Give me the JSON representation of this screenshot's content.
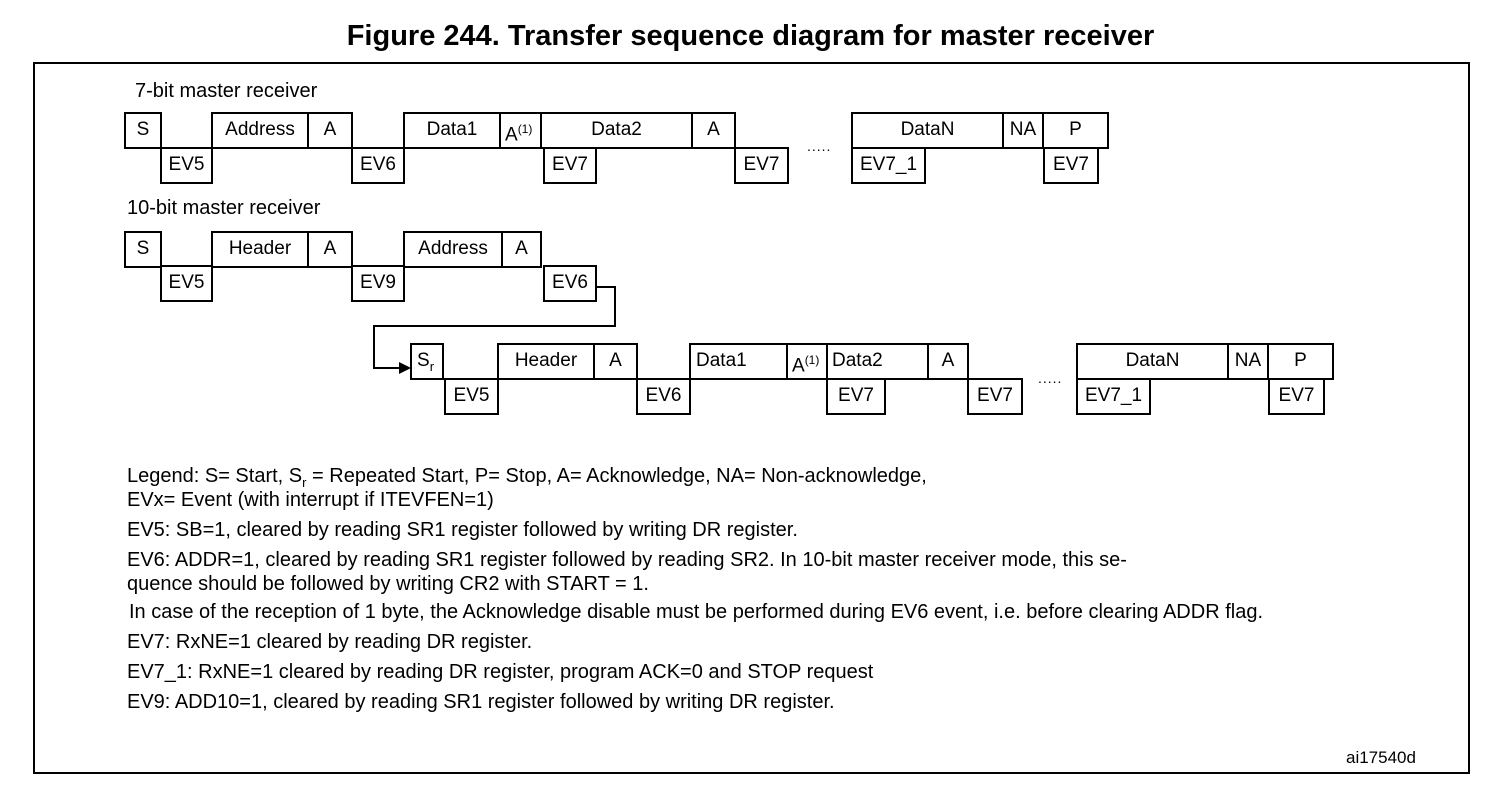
{
  "title": "Figure 244. Transfer sequence diagram for master receiver",
  "seven_bit": {
    "label": "7-bit master receiver",
    "top": {
      "s": "S",
      "address": "Address",
      "a1": "A",
      "data1": "Data1",
      "a2": "A",
      "a2_sup": "(1)",
      "data2": "Data2",
      "a3": "A",
      "dataN": "DataN",
      "na": "NA",
      "p": "P"
    },
    "bottom": {
      "ev5": "EV5",
      "ev6": "EV6",
      "ev7a": "EV7",
      "ev7b": "EV7",
      "ev7_1": "EV7_1",
      "ev7c": "EV7"
    },
    "dots": "....."
  },
  "ten_bit": {
    "label": "10-bit master receiver",
    "line1_top": {
      "s": "S",
      "header": "Header",
      "a1": "A",
      "address": "Address",
      "a2": "A"
    },
    "line1_bottom": {
      "ev5": "EV5",
      "ev9": "EV9",
      "ev6": "EV6"
    },
    "line2_top": {
      "sr": "S",
      "sr_sub": "r",
      "header": "Header",
      "a1": "A",
      "data1": "Data1",
      "a2": "A",
      "a2_sup": "(1)",
      "data2": "Data2",
      "a3": "A",
      "dataN": "DataN",
      "na": "NA",
      "p": "P"
    },
    "line2_bottom": {
      "ev5": "EV5",
      "ev6": "EV6",
      "ev7a": "EV7",
      "ev7b": "EV7",
      "ev7_1": "EV7_1",
      "ev7c": "EV7"
    },
    "dots": "....."
  },
  "legend": {
    "l1_a": "Legend: S= Start, S",
    "l1_sub": "r",
    "l1_b": " = Repeated Start, P= Stop, A= Acknowledge, NA= Non-acknowledge,",
    "l2": "EVx= Event (with interrupt if ITEVFEN=1)",
    "ev5": "EV5: SB=1, cleared by reading SR1 register followed by writing DR register.",
    "ev6_1": "EV6: ADDR=1, cleared by reading SR1 register followed by reading SR2. In 10-bit master receiver mode, this se-",
    "ev6_2": "quence should be followed by writing CR2 with START = 1.",
    "ev6_3": "In case of the reception of 1 byte, the Acknowledge disable must be performed during EV6 event, i.e. before clearing ADDR flag.",
    "ev7": "EV7: RxNE=1 cleared by reading DR register.",
    "ev7_1": "EV7_1: RxNE=1 cleared by reading DR register, program ACK=0 and STOP request",
    "ev9": "EV9: ADD10=1, cleared by reading SR1 register followed by writing DR register."
  },
  "ref": "ai17540d"
}
